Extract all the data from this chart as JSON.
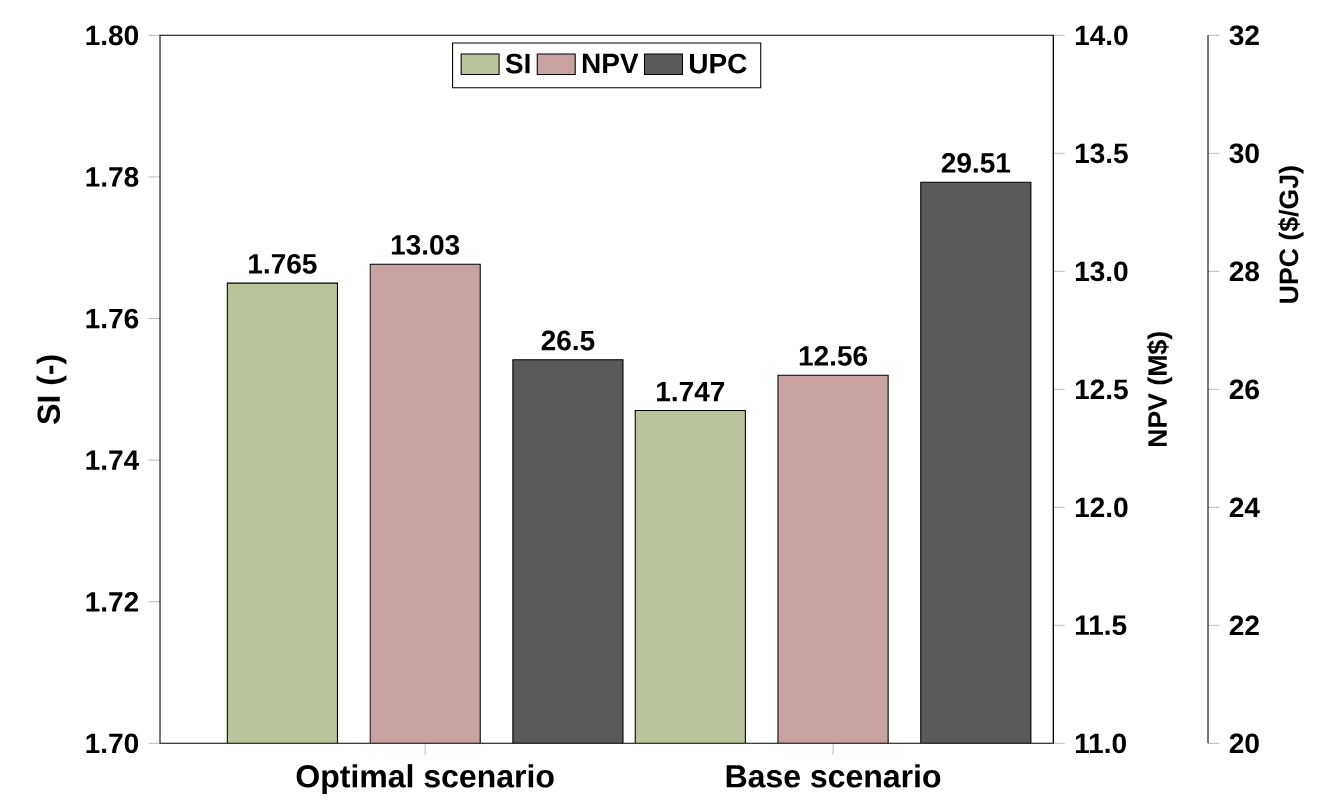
{
  "chart_data": {
    "type": "bar",
    "categories": [
      "Optimal scenario",
      "Base scenario"
    ],
    "series": [
      {
        "name": "SI",
        "color": "#b9c49a",
        "values": [
          1.765,
          1.747
        ],
        "axis": "y"
      },
      {
        "name": "NPV",
        "color": "#c9a2a2",
        "values": [
          13.03,
          12.56
        ],
        "axis": "y2"
      },
      {
        "name": "UPC",
        "color": "#5a5a5a",
        "values": [
          26.5,
          29.51
        ],
        "axis": "y3"
      }
    ],
    "ylabel": "SI (-)",
    "y2label": "NPV (M$)",
    "y3label": "UPC ($/GJ)",
    "ylim": [
      1.7,
      1.8
    ],
    "yticks": [
      {
        "value": 1.7,
        "label": "1.70"
      },
      {
        "value": 1.72,
        "label": "1.72"
      },
      {
        "value": 1.74,
        "label": "1.74"
      },
      {
        "value": 1.76,
        "label": "1.76"
      },
      {
        "value": 1.78,
        "label": "1.78"
      },
      {
        "value": 1.8,
        "label": "1.80"
      }
    ],
    "y2lim": [
      11.0,
      14.0
    ],
    "y2ticks": [
      {
        "value": 11.0,
        "label": "11.0"
      },
      {
        "value": 11.5,
        "label": "11.5"
      },
      {
        "value": 12.0,
        "label": "12.0"
      },
      {
        "value": 12.5,
        "label": "12.5"
      },
      {
        "value": 13.0,
        "label": "13.0"
      },
      {
        "value": 13.5,
        "label": "13.5"
      },
      {
        "value": 14.0,
        "label": "14.0"
      }
    ],
    "y3lim": [
      20,
      32
    ],
    "y3ticks": [
      20,
      22,
      24,
      26,
      28,
      30,
      32
    ],
    "data_labels": true,
    "legend": "top"
  }
}
